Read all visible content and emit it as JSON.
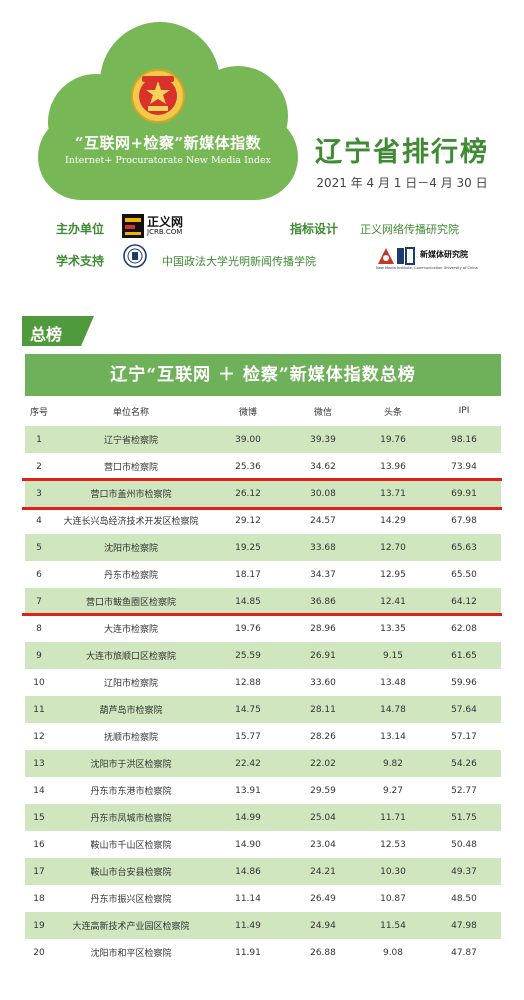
{
  "header": {
    "slogan_cn": "“互联网+检察”新媒体指数",
    "slogan_en": "Internet+ Procuratorate New Media Index",
    "rank_title": "辽宁省排行榜",
    "date_range": "2021 年 4 月 1 日－4 月 30 日",
    "organizer_label": "主办单位",
    "organizer_logo_text": "正义网",
    "organizer_logo_sub": "JCRB.COM",
    "index_design_label": "指标设计",
    "index_design_value": "正义网络传播研究院",
    "academic_label": "学术支持",
    "academic_value": "中国政法大学光明新闻传播学院",
    "institute_logo_cn": "新媒体研究院",
    "institute_logo_en": "New Media Institute, Communication University of China"
  },
  "section_tag": "总榜",
  "table": {
    "title": "辽宁“互联网 ＋ 检察”新媒体指数总榜",
    "headers": [
      "序号",
      "单位名称",
      "微博",
      "微信",
      "头条",
      "IPI"
    ],
    "rows": [
      [
        "1",
        "辽宁省检察院",
        "39.00",
        "39.39",
        "19.76",
        "98.16"
      ],
      [
        "2",
        "营口市检察院",
        "25.36",
        "34.62",
        "13.96",
        "73.94"
      ],
      [
        "3",
        "营口市盖州市检察院",
        "26.12",
        "30.08",
        "13.71",
        "69.91"
      ],
      [
        "4",
        "大连长兴岛经济技术开发区检察院",
        "29.12",
        "24.57",
        "14.29",
        "67.98"
      ],
      [
        "5",
        "沈阳市检察院",
        "19.25",
        "33.68",
        "12.70",
        "65.63"
      ],
      [
        "6",
        "丹东市检察院",
        "18.17",
        "34.37",
        "12.95",
        "65.50"
      ],
      [
        "7",
        "营口市鲅鱼圈区检察院",
        "14.85",
        "36.86",
        "12.41",
        "64.12"
      ],
      [
        "8",
        "大连市检察院",
        "19.76",
        "28.96",
        "13.35",
        "62.08"
      ],
      [
        "9",
        "大连市旅顺口区检察院",
        "25.59",
        "26.91",
        "9.15",
        "61.65"
      ],
      [
        "10",
        "辽阳市检察院",
        "12.88",
        "33.60",
        "13.48",
        "59.96"
      ],
      [
        "11",
        "葫芦岛市检察院",
        "14.75",
        "28.11",
        "14.78",
        "57.64"
      ],
      [
        "12",
        "抚顺市检察院",
        "15.77",
        "28.26",
        "13.14",
        "57.17"
      ],
      [
        "13",
        "沈阳市于洪区检察院",
        "22.42",
        "22.02",
        "9.82",
        "54.26"
      ],
      [
        "14",
        "丹东市东港市检察院",
        "13.91",
        "29.59",
        "9.27",
        "52.77"
      ],
      [
        "15",
        "丹东市凤城市检察院",
        "14.99",
        "25.04",
        "11.71",
        "51.75"
      ],
      [
        "16",
        "鞍山市千山区检察院",
        "14.90",
        "23.04",
        "12.53",
        "50.48"
      ],
      [
        "17",
        "鞍山市台安县检察院",
        "14.86",
        "24.21",
        "10.30",
        "49.37"
      ],
      [
        "18",
        "丹东市振兴区检察院",
        "11.14",
        "26.49",
        "10.87",
        "48.50"
      ],
      [
        "19",
        "大连高新技术产业园区检察院",
        "11.49",
        "24.94",
        "11.54",
        "47.98"
      ],
      [
        "20",
        "沈阳市和平区检察院",
        "11.91",
        "26.88",
        "9.08",
        "47.87"
      ]
    ]
  },
  "colors": {
    "brand_green": "#3f8b33",
    "cloud_green": "#78b756",
    "title_bar": "#6fb05a",
    "stripe": "#cfe6bf",
    "highlight_line": "#e0201b"
  }
}
